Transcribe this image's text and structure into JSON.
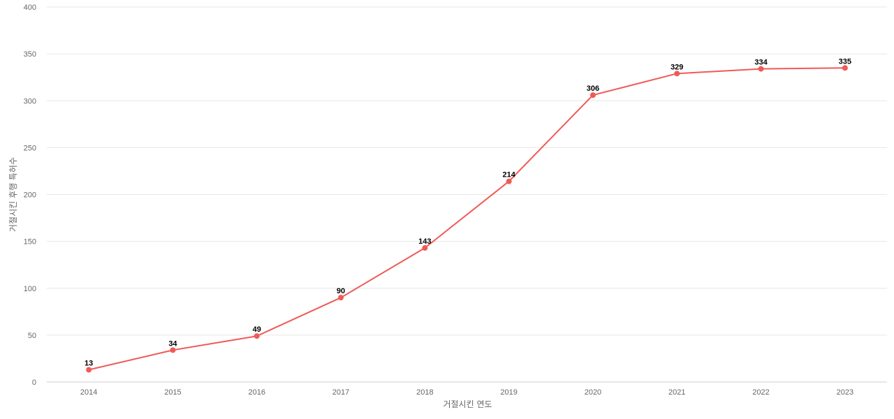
{
  "chart_data": {
    "type": "line",
    "title": "",
    "xlabel": "거절시킨 연도",
    "ylabel": "거절시킨 후행 특허수",
    "categories": [
      "2014",
      "2015",
      "2016",
      "2017",
      "2018",
      "2019",
      "2020",
      "2021",
      "2022",
      "2023"
    ],
    "series": [
      {
        "values": [
          13,
          34,
          49,
          90,
          143,
          214,
          306,
          329,
          334,
          335
        ]
      }
    ],
    "ylim": [
      0,
      400
    ],
    "yticks": [
      0,
      50,
      100,
      150,
      200,
      250,
      300,
      350,
      400
    ],
    "grid": true,
    "legend": "none",
    "data_labels": true,
    "colors": {
      "line": "#ef5a57",
      "grid": "#e6e6e6",
      "axis": "#cccccc",
      "tick_text": "#666666",
      "label_text": "#000000"
    }
  }
}
